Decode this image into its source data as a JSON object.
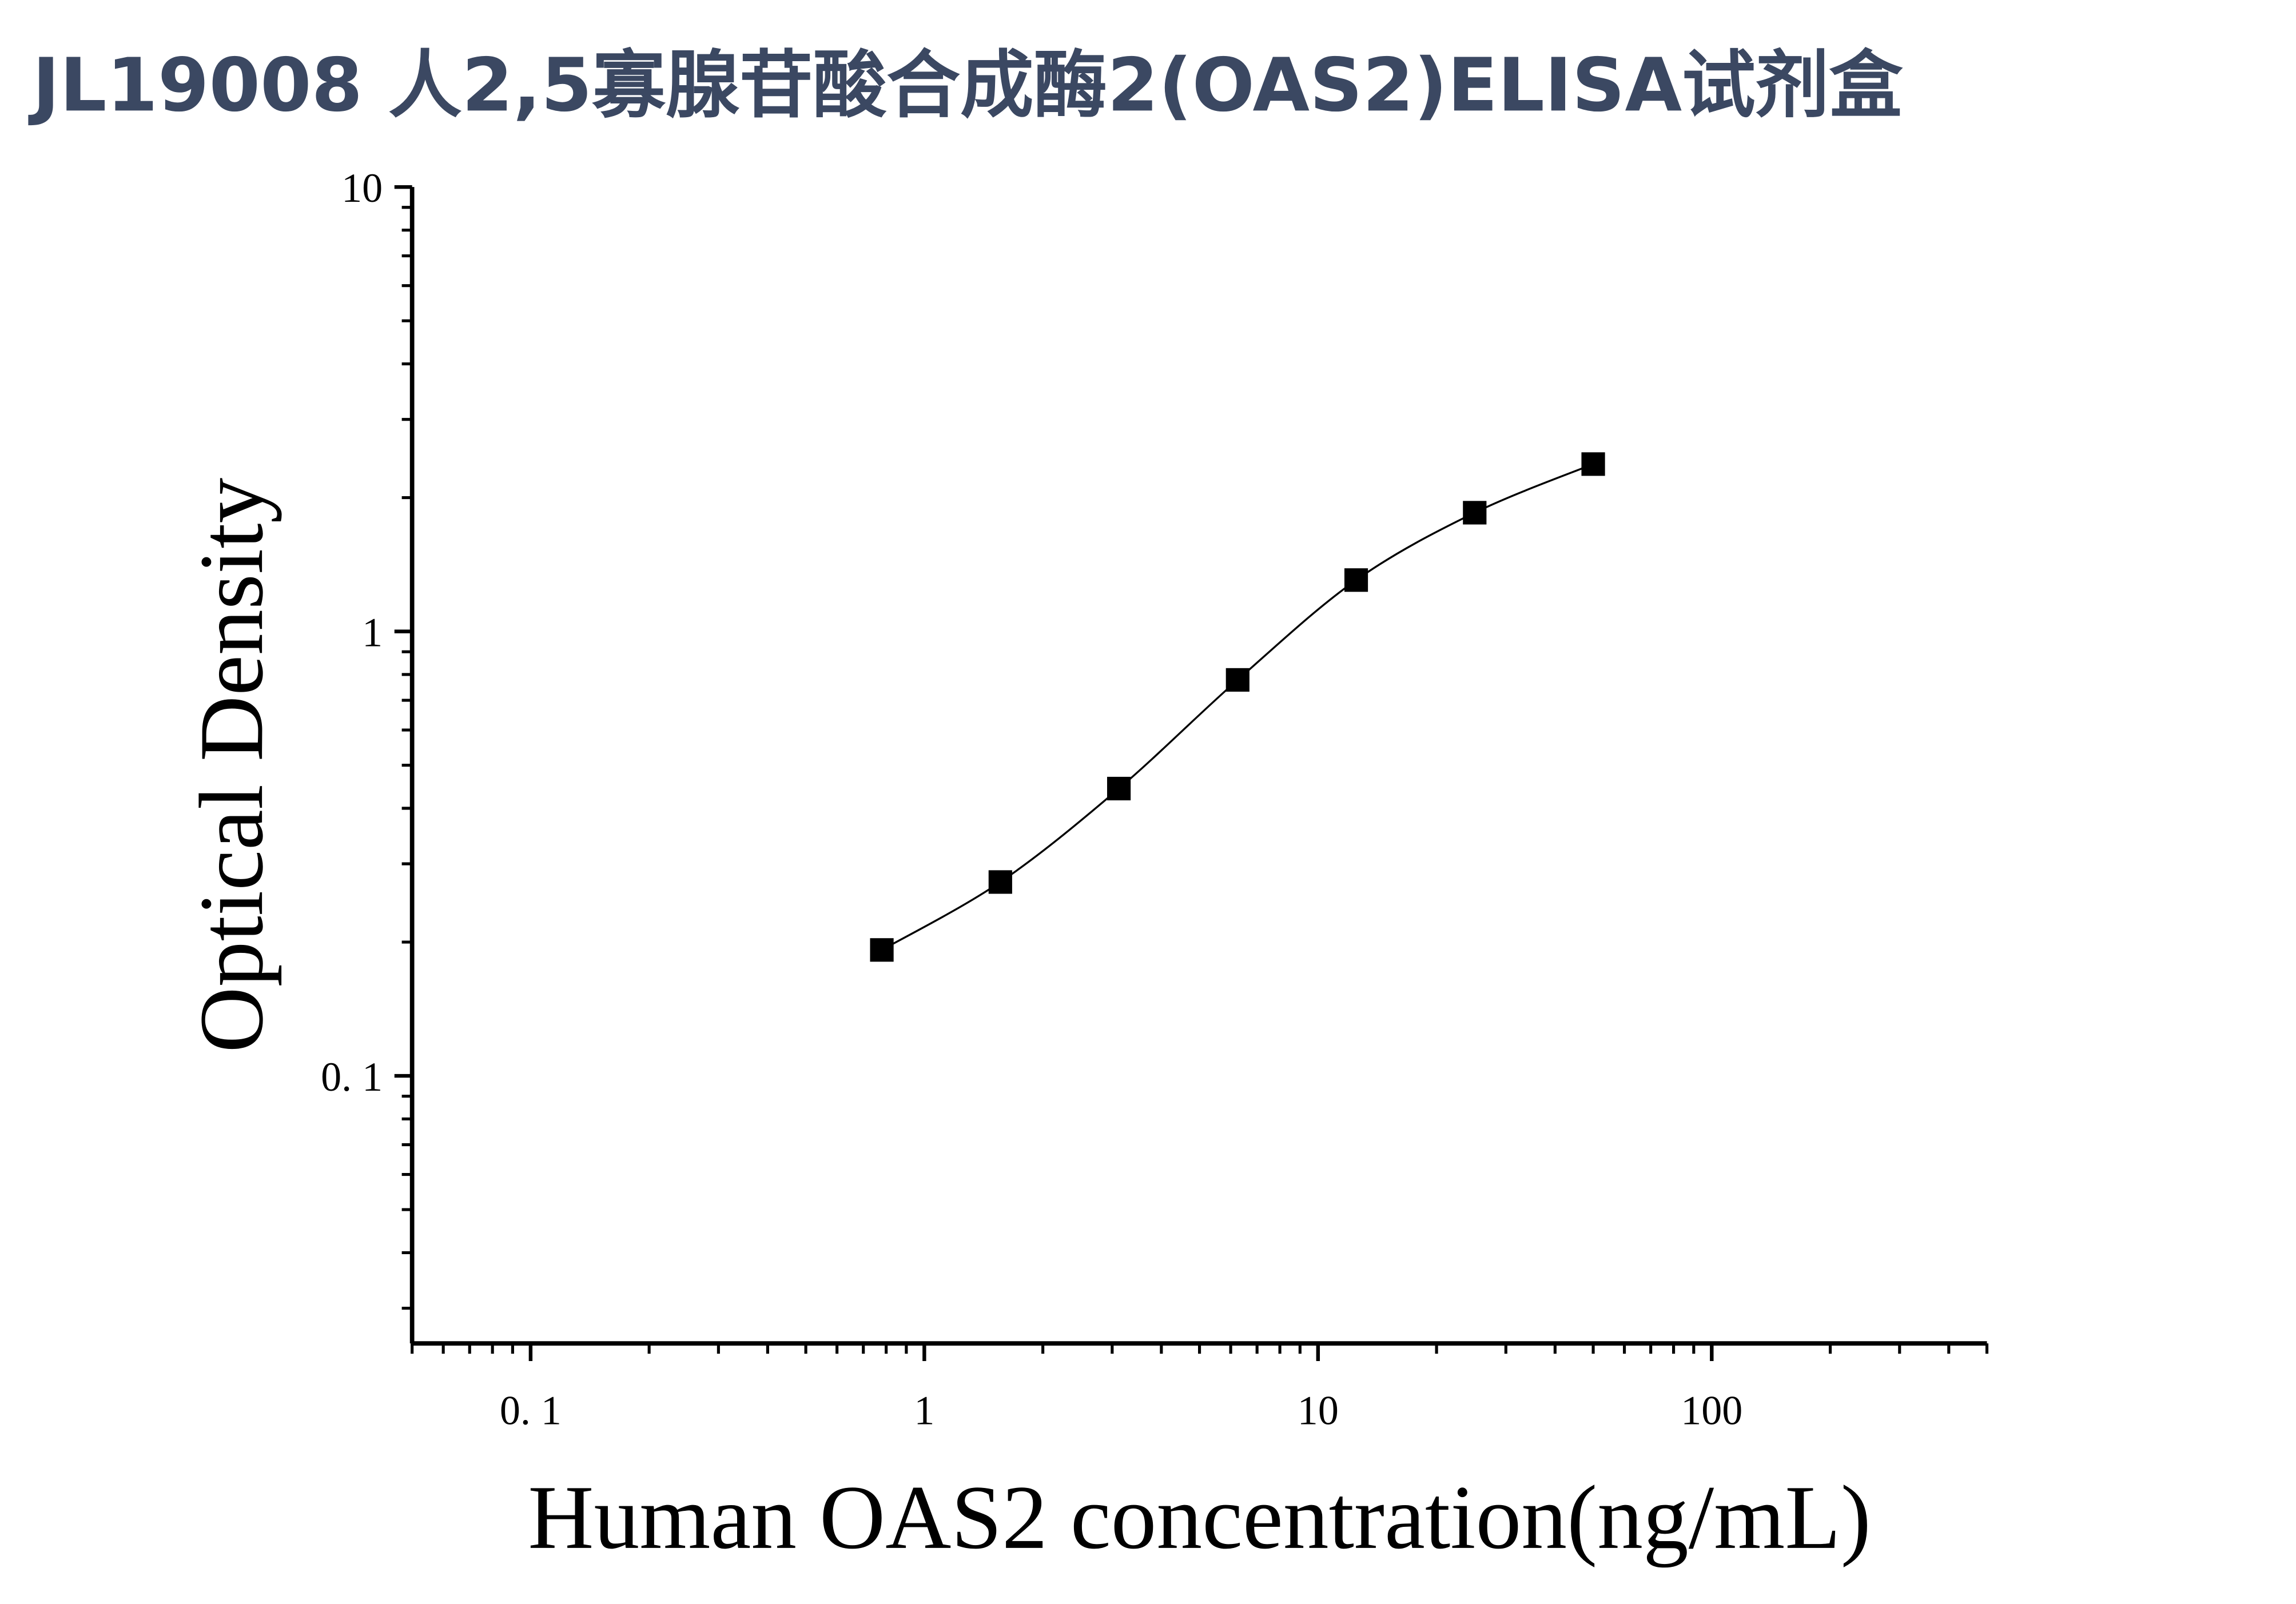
{
  "chart_data": {
    "type": "scatter",
    "title": "JL19008 人2,5寡腺苷酸合成酶2(OAS2)ELISA试剂盒",
    "x_label": "Human OAS2 concentration(ng/mL)",
    "y_label": "Optical Density",
    "x_log": true,
    "y_log": true,
    "xlim": [
      0.05,
      500
    ],
    "ylim": [
      0.025,
      10
    ],
    "xticks": [
      {
        "value": 0.1,
        "label": "0. 1"
      },
      1,
      10,
      100
    ],
    "yticks": [
      {
        "value": 0.1,
        "label": "0. 1"
      },
      1,
      10
    ],
    "xminorticks": [
      0.05,
      0.06,
      0.07,
      0.08,
      0.09,
      0.2,
      0.3,
      0.4,
      0.5,
      0.6,
      0.7,
      0.8,
      0.9,
      2,
      3,
      4,
      5,
      6,
      7,
      8,
      9,
      20,
      30,
      40,
      50,
      60,
      70,
      80,
      90,
      200,
      300,
      400,
      500
    ],
    "yminorticks": [
      0.03,
      0.04,
      0.05,
      0.06,
      0.07,
      0.08,
      0.09,
      0.2,
      0.3,
      0.4,
      0.5,
      0.6,
      0.7,
      0.8,
      0.9,
      2,
      3,
      4,
      5,
      6,
      7,
      8,
      9
    ],
    "x": [
      0.78,
      1.56,
      3.12,
      6.25,
      12.5,
      25,
      50
    ],
    "series": [
      {
        "color": "#000000",
        "values": [
          0.192,
          0.273,
          0.443,
          0.778,
          1.305,
          1.85,
          2.38
        ]
      }
    ]
  }
}
